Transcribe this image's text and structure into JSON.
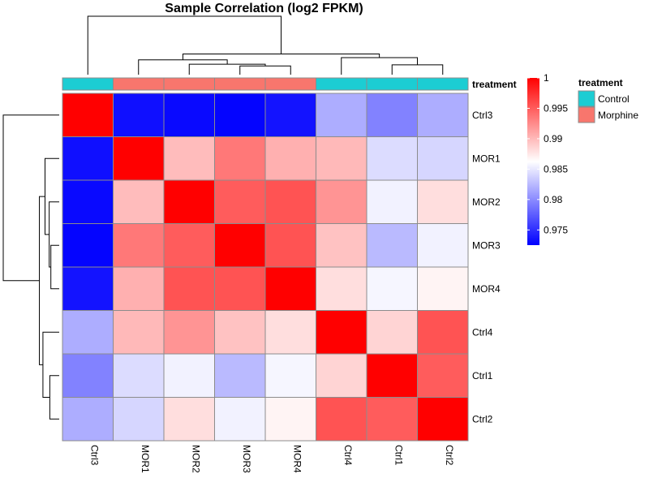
{
  "chart_data": {
    "type": "heatmap",
    "title": "Sample Correlation (log2 FPKM)",
    "rows": [
      "Ctrl3",
      "MOR1",
      "MOR2",
      "MOR3",
      "MOR4",
      "Ctrl4",
      "Ctrl1",
      "Ctrl2"
    ],
    "columns": [
      "Ctrl3",
      "MOR1",
      "MOR2",
      "MOR3",
      "MOR4",
      "Ctrl4",
      "Ctrl1",
      "Ctrl2"
    ],
    "values": [
      [
        1.0,
        0.9733,
        0.973,
        0.9727,
        0.9735,
        0.9818,
        0.9795,
        0.9818
      ],
      [
        0.9733,
        1.0,
        0.9898,
        0.9935,
        0.9905,
        0.99,
        0.9843,
        0.984
      ],
      [
        0.973,
        0.9898,
        1.0,
        0.995,
        0.9955,
        0.992,
        0.9855,
        0.988
      ],
      [
        0.9727,
        0.9935,
        0.995,
        1.0,
        0.9955,
        0.9895,
        0.9825,
        0.9855
      ],
      [
        0.9735,
        0.9905,
        0.9955,
        0.9955,
        1.0,
        0.988,
        0.9857,
        0.9868
      ],
      [
        0.9818,
        0.99,
        0.992,
        0.9895,
        0.988,
        1.0,
        0.9885,
        0.9955
      ],
      [
        0.9795,
        0.9843,
        0.9855,
        0.9825,
        0.9857,
        0.9885,
        1.0,
        0.995
      ],
      [
        0.9818,
        0.984,
        0.988,
        0.9855,
        0.9868,
        0.9955,
        0.995,
        1.0
      ]
    ],
    "color_scale": {
      "min": 0.9725,
      "mid": 0.9862,
      "max": 1.0,
      "low_color": "#0000ff",
      "mid_color": "#ffffff",
      "high_color": "#ff0000"
    },
    "colorbar_ticks": [
      {
        "label": "1",
        "value": 1.0
      },
      {
        "label": "0.995",
        "value": 0.995
      },
      {
        "label": "0.99",
        "value": 0.99
      },
      {
        "label": "0.985",
        "value": 0.985
      },
      {
        "label": "0.98",
        "value": 0.98
      },
      {
        "label": "0.975",
        "value": 0.975
      }
    ],
    "annotation": {
      "name": "treatment",
      "column_groups": [
        "Control",
        "Morphine",
        "Morphine",
        "Morphine",
        "Morphine",
        "Control",
        "Control",
        "Control"
      ],
      "colors": {
        "Control": "#1ccdd3",
        "Morphine": "#f8766d"
      }
    },
    "legend": {
      "title": "treatment",
      "entries": [
        "Control",
        "Morphine"
      ],
      "placement": "right"
    },
    "dendrogram": {
      "order": [
        "Ctrl3",
        "MOR1",
        "MOR2",
        "MOR3",
        "MOR4",
        "Ctrl4",
        "Ctrl1",
        "Ctrl2"
      ],
      "merges": [
        {
          "left": "MOR3",
          "right": "MOR4",
          "height": 0.004
        },
        {
          "left": "MOR2",
          "right": "MOR3+MOR4",
          "height": 0.0048
        },
        {
          "left": "MOR1",
          "right": "MOR2+MOR3+MOR4",
          "height": 0.0068
        },
        {
          "left": "Ctrl1",
          "right": "Ctrl2",
          "height": 0.0045
        },
        {
          "left": "Ctrl4",
          "right": "Ctrl1+Ctrl2",
          "height": 0.0078
        },
        {
          "left": "MOR1-4",
          "right": "Ctrl4+Ctrl1+Ctrl2",
          "height": 0.0095
        },
        {
          "left": "Ctrl3",
          "right": "rest",
          "height": 0.0268
        }
      ]
    }
  }
}
